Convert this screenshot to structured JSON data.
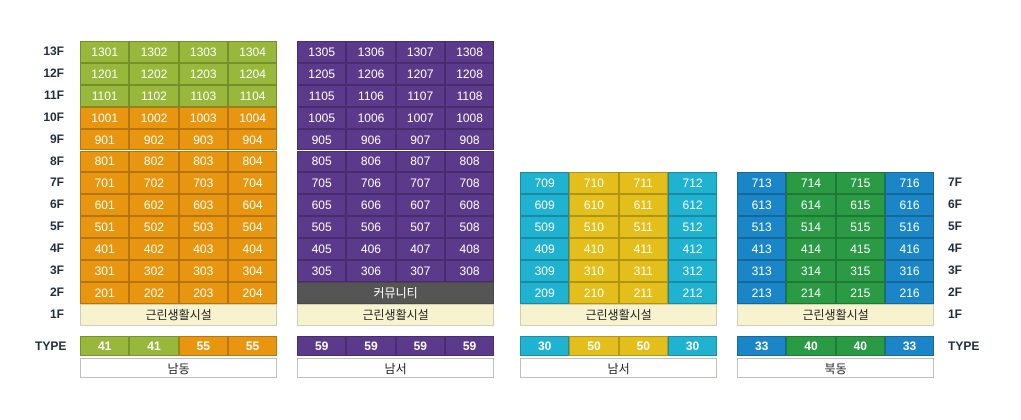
{
  "colors": {
    "green": "#97b83a",
    "orange": "#e8960f",
    "purple": "#5b3a8c",
    "cyan": "#1fb3d1",
    "yellow": "#e4be1b",
    "blue": "#1a86c8",
    "dkgreen": "#2a9a44",
    "amenity": "#f7f3cf",
    "community": "#555555"
  },
  "floor_labels_left": [
    "13F",
    "12F",
    "11F",
    "10F",
    "9F",
    "8F",
    "7F",
    "6F",
    "5F",
    "4F",
    "3F",
    "2F",
    "1F"
  ],
  "floor_labels_right": [
    "7F",
    "6F",
    "5F",
    "4F",
    "3F",
    "2F",
    "1F"
  ],
  "type_label": "TYPE",
  "amenity_label": "근린생활시설",
  "community_label": "커뮤니티",
  "blocks": [
    {
      "columns": [
        [
          "1301",
          "1201",
          "1101",
          "1001",
          "901",
          "801",
          "701",
          "601",
          "501",
          "401",
          "301",
          "201"
        ],
        [
          "1302",
          "1202",
          "1102",
          "1002",
          "902",
          "802",
          "702",
          "602",
          "502",
          "402",
          "302",
          "202"
        ],
        [
          "1303",
          "1203",
          "1103",
          "1003",
          "903",
          "803",
          "703",
          "603",
          "503",
          "403",
          "303",
          "203"
        ],
        [
          "1304",
          "1204",
          "1104",
          "1004",
          "904",
          "804",
          "704",
          "604",
          "504",
          "404",
          "304",
          "204"
        ]
      ],
      "types": [
        "41",
        "41",
        "55",
        "55"
      ],
      "direction": "남동"
    },
    {
      "columns": [
        [
          "1305",
          "1205",
          "1105",
          "1005",
          "905",
          "805",
          "705",
          "605",
          "505",
          "405",
          "305"
        ],
        [
          "1306",
          "1206",
          "1106",
          "1006",
          "906",
          "806",
          "706",
          "606",
          "506",
          "406",
          "306"
        ],
        [
          "1307",
          "1207",
          "1107",
          "1007",
          "907",
          "807",
          "707",
          "607",
          "507",
          "407",
          "307"
        ],
        [
          "1308",
          "1208",
          "1108",
          "1008",
          "908",
          "808",
          "708",
          "608",
          "508",
          "408",
          "308"
        ]
      ],
      "types": [
        "59",
        "59",
        "59",
        "59"
      ],
      "direction": "남서"
    },
    {
      "columns": [
        [
          "709",
          "609",
          "509",
          "409",
          "309",
          "209"
        ],
        [
          "710",
          "610",
          "510",
          "410",
          "310",
          "210"
        ],
        [
          "711",
          "611",
          "511",
          "411",
          "311",
          "211"
        ],
        [
          "712",
          "612",
          "512",
          "412",
          "312",
          "212"
        ]
      ],
      "types": [
        "30",
        "50",
        "50",
        "30"
      ],
      "direction": "남서"
    },
    {
      "columns": [
        [
          "713",
          "613",
          "513",
          "413",
          "313",
          "213"
        ],
        [
          "714",
          "614",
          "514",
          "414",
          "314",
          "214"
        ],
        [
          "715",
          "615",
          "515",
          "415",
          "315",
          "215"
        ],
        [
          "716",
          "616",
          "516",
          "416",
          "316",
          "216"
        ]
      ],
      "types": [
        "33",
        "40",
        "40",
        "33"
      ],
      "direction": "북동"
    }
  ]
}
